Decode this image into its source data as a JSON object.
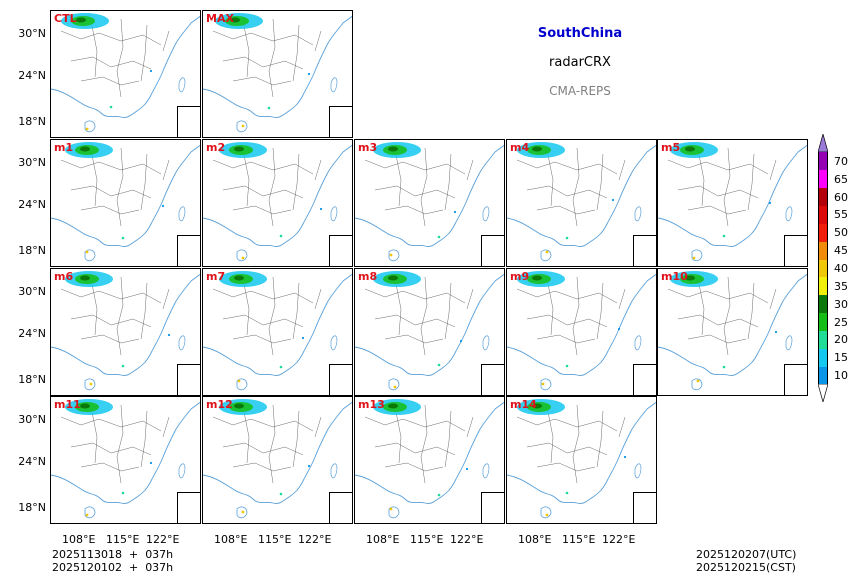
{
  "header": {
    "region": "SouthChina",
    "variable": "radarCRX",
    "system": "CMA-REPS",
    "region_color": "#0000cc",
    "variable_color": "#000000",
    "system_color": "#808080"
  },
  "panels": [
    {
      "label": "CTL"
    },
    {
      "label": "MAX"
    },
    {
      "label": "m1"
    },
    {
      "label": "m2"
    },
    {
      "label": "m3"
    },
    {
      "label": "m4"
    },
    {
      "label": "m5"
    },
    {
      "label": "m6"
    },
    {
      "label": "m7"
    },
    {
      "label": "m8"
    },
    {
      "label": "m9"
    },
    {
      "label": "m10"
    },
    {
      "label": "m11"
    },
    {
      "label": "m12"
    },
    {
      "label": "m13"
    },
    {
      "label": "m14"
    }
  ],
  "axes": {
    "lat_ticks": [
      "30°N",
      "24°N",
      "18°N"
    ],
    "lon_ticks": [
      "108°E",
      "115°E",
      "122°E"
    ]
  },
  "colorbar": {
    "levels": [
      "10",
      "15",
      "20",
      "25",
      "30",
      "35",
      "40",
      "45",
      "50",
      "55",
      "60",
      "65",
      "70"
    ],
    "colors": [
      "#0a96e6",
      "#14c8f0",
      "#1fdc96",
      "#14be14",
      "#0a780a",
      "#f0f00a",
      "#f0c80a",
      "#f08c0a",
      "#f01e0a",
      "#dc0a0a",
      "#b4000a",
      "#ff00ff",
      "#9600b4",
      "#9a7ad8"
    ]
  },
  "footer": {
    "init_utc": "2025113018  +  037h",
    "init_cst": "2025120102  +  037h",
    "valid_utc": "2025120207(UTC)",
    "valid_cst": "2025120215(CST)"
  }
}
